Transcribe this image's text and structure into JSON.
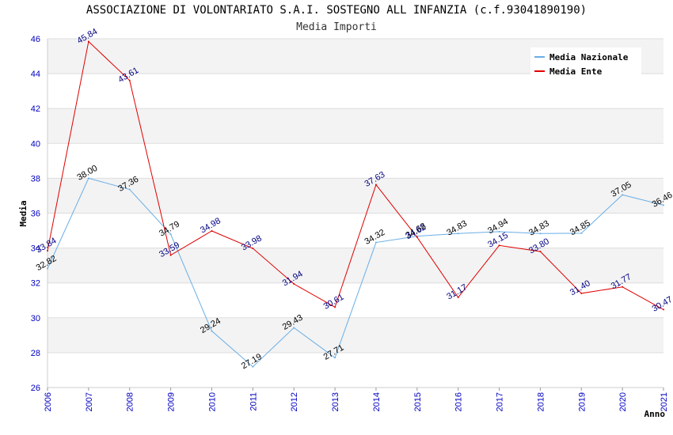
{
  "chart_data": {
    "type": "line",
    "title": "ASSOCIAZIONE DI VOLONTARIATO S.A.I. SOSTEGNO ALL INFANZIA (c.f.93041890190)",
    "subtitle": "Media Importi",
    "xlabel": "Anno",
    "ylabel": "Media",
    "ylim": [
      26,
      46
    ],
    "yticks": [
      26,
      28,
      30,
      32,
      34,
      36,
      38,
      40,
      42,
      44,
      46
    ],
    "x": [
      "2006",
      "2007",
      "2008",
      "2009",
      "2010",
      "2011",
      "2012",
      "2013",
      "2014",
      "2015",
      "2016",
      "2017",
      "2018",
      "2019",
      "2020",
      "2021"
    ],
    "grid": true,
    "legend_position": "top-right",
    "series": [
      {
        "name": "Media Nazionale",
        "color": "#6aaee6",
        "label_color": "#000000",
        "values": [
          32.82,
          38.0,
          37.36,
          34.79,
          29.24,
          27.19,
          29.43,
          27.71,
          34.32,
          34.68,
          34.83,
          34.94,
          34.83,
          34.85,
          37.05,
          36.46
        ],
        "labels": [
          "32.82",
          "38.00",
          "37.36",
          "34.79",
          "29.24",
          "27.19",
          "29.43",
          "27.71",
          "34.32",
          "34.68",
          "34.83",
          "34.94",
          "34.83",
          "34.85",
          "37.05",
          "36.46"
        ]
      },
      {
        "name": "Media Ente",
        "color": "#e00000",
        "label_color": "#000080",
        "values": [
          33.84,
          45.84,
          43.61,
          33.59,
          34.98,
          33.98,
          31.94,
          30.61,
          37.63,
          34.62,
          31.17,
          34.15,
          33.8,
          31.4,
          31.77,
          30.47
        ],
        "labels": [
          "33.84",
          "45.84",
          "43.61",
          "33.59",
          "34.98",
          "33.98",
          "31.94",
          "30.61",
          "37.63",
          "34.62",
          "31.17",
          "34.15",
          "33.80",
          "31.40",
          "31.77",
          "30.47"
        ]
      }
    ]
  }
}
